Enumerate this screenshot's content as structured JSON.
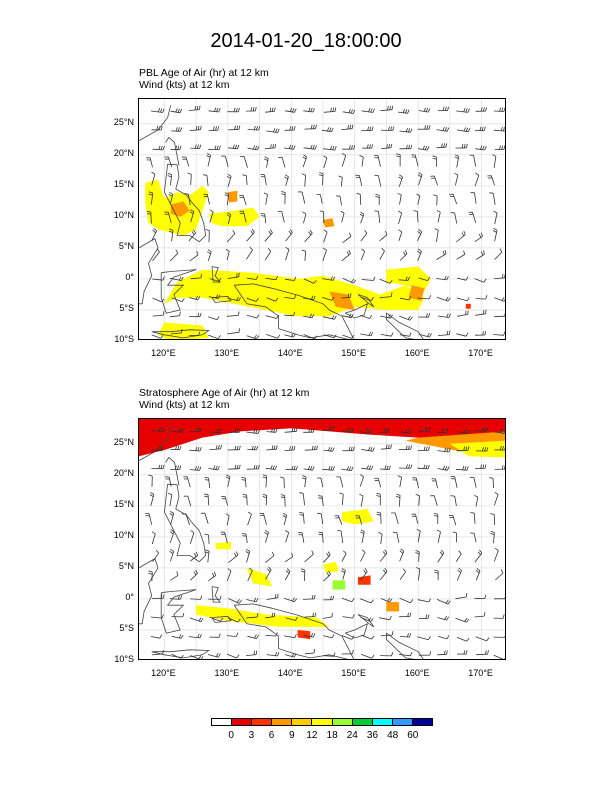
{
  "title": "2014-01-20_18:00:00",
  "panels": [
    {
      "field_label": "PBL Age of Air   (hr)     at   12 km",
      "wind_label": "Wind   (kts)     at   12 km"
    },
    {
      "field_label": "Stratosphere Age of Air   (hr)     at   12 km",
      "wind_label": "Wind   (kts)     at   12 km"
    }
  ],
  "map": {
    "lat_range": [
      -10,
      29
    ],
    "lon_range": [
      116,
      174
    ],
    "lat_ticks": [
      "25°N",
      "20°N",
      "15°N",
      "10°N",
      "5°N",
      "0°",
      "5°S",
      "10°S"
    ],
    "lat_tick_values": [
      25,
      20,
      15,
      10,
      5,
      0,
      -5,
      -10
    ],
    "lon_ticks": [
      "120°E",
      "130°E",
      "140°E",
      "150°E",
      "160°E",
      "170°E"
    ],
    "lon_tick_values": [
      120,
      130,
      140,
      150,
      160,
      170
    ]
  },
  "colorbar": {
    "labels": [
      "0",
      "3",
      "6",
      "9",
      "12",
      "18",
      "24",
      "36",
      "48",
      "60"
    ],
    "colors": [
      "#ffffff",
      "#e60000",
      "#ff3300",
      "#ff9900",
      "#ffcc00",
      "#ffff00",
      "#99ff33",
      "#00cc33",
      "#00ffff",
      "#3399ff",
      "#000099"
    ]
  }
}
